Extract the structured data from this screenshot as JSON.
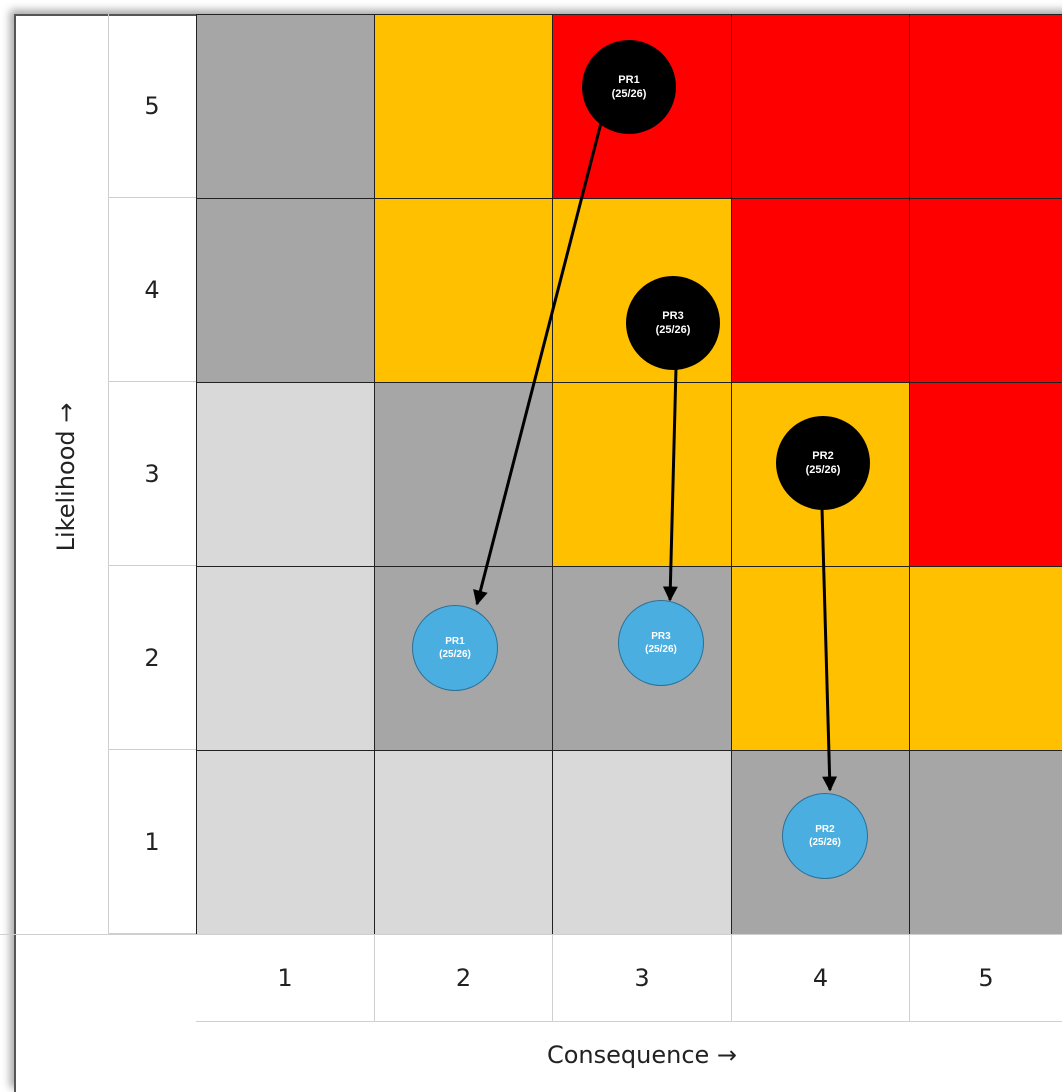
{
  "y_axis": {
    "label": "Likelihood →",
    "ticks": [
      "5",
      "4",
      "3",
      "2",
      "1"
    ]
  },
  "x_axis": {
    "label": "Consequence →",
    "ticks": [
      "1",
      "2",
      "3",
      "4",
      "5"
    ]
  },
  "colors": {
    "red": "#ff0000",
    "amber": "#ffc000",
    "dark_grey": "#a6a6a6",
    "light_grey": "#d9d9d9",
    "current_marker": "#000000",
    "target_marker": "#4aaee0"
  },
  "matrix_rows": [
    {
      "likelihood": "5",
      "cells": [
        "dark_grey",
        "amber",
        "red",
        "red",
        "red"
      ]
    },
    {
      "likelihood": "4",
      "cells": [
        "dark_grey",
        "amber",
        "amber",
        "red",
        "red"
      ]
    },
    {
      "likelihood": "3",
      "cells": [
        "light_grey",
        "dark_grey",
        "amber",
        "amber",
        "red"
      ]
    },
    {
      "likelihood": "2",
      "cells": [
        "light_grey",
        "dark_grey",
        "dark_grey",
        "amber",
        "amber"
      ]
    },
    {
      "likelihood": "1",
      "cells": [
        "light_grey",
        "light_grey",
        "light_grey",
        "dark_grey",
        "dark_grey"
      ]
    }
  ],
  "risks": [
    {
      "id": "PR1",
      "current": {
        "title": "PR1",
        "sub": "(25/26)"
      },
      "target": {
        "title": "PR1",
        "sub": "(25/26)"
      }
    },
    {
      "id": "PR3",
      "current": {
        "title": "PR3",
        "sub": "(25/26)"
      },
      "target": {
        "title": "PR3",
        "sub": "(25/26)"
      }
    },
    {
      "id": "PR2",
      "current": {
        "title": "PR2",
        "sub": "(25/26)"
      },
      "target": {
        "title": "PR2",
        "sub": "(25/26)"
      }
    }
  ]
}
